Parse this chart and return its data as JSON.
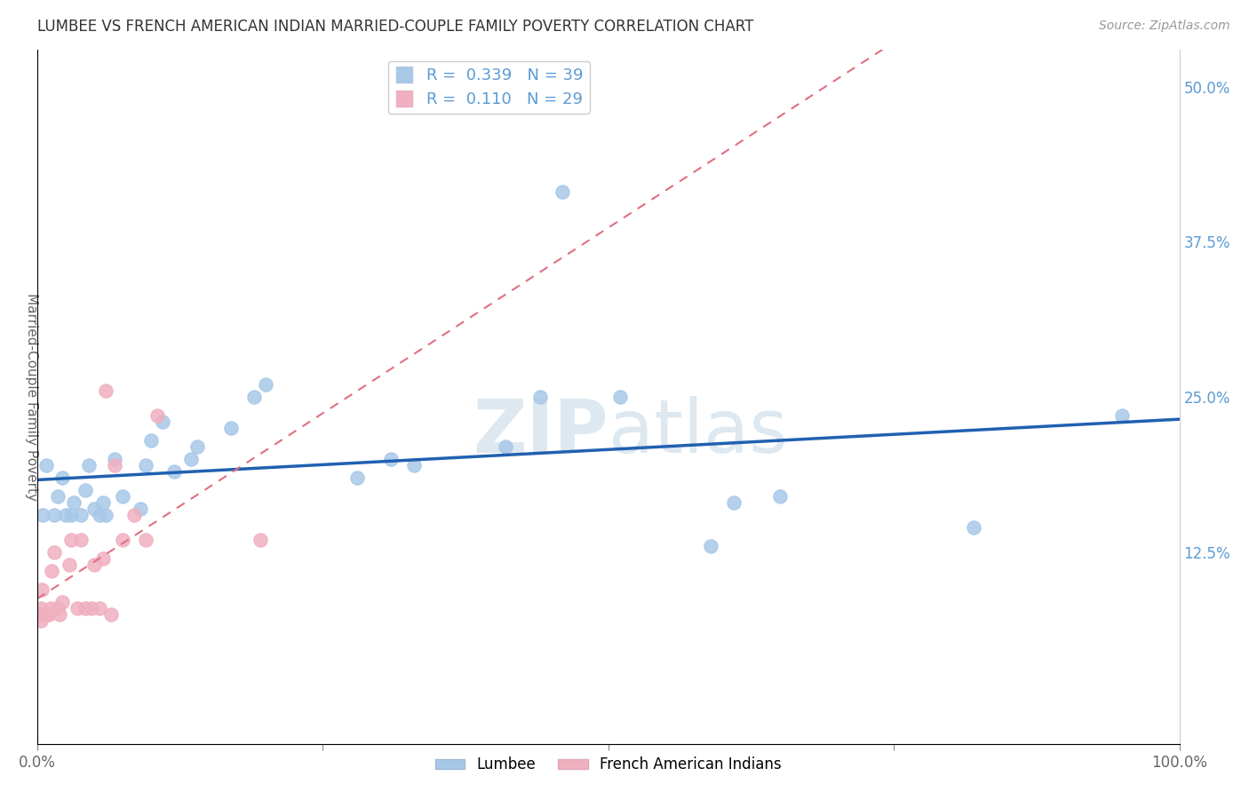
{
  "title": "LUMBEE VS FRENCH AMERICAN INDIAN MARRIED-COUPLE FAMILY POVERTY CORRELATION CHART",
  "source": "Source: ZipAtlas.com",
  "ylabel": "Married-Couple Family Poverty",
  "xlim": [
    0,
    1.0
  ],
  "ylim": [
    -0.03,
    0.53
  ],
  "xticks": [
    0.0,
    0.25,
    0.5,
    0.75,
    1.0
  ],
  "xtick_labels": [
    "0.0%",
    "",
    "",
    "",
    "100.0%"
  ],
  "yticks": [
    0.0,
    0.125,
    0.25,
    0.375,
    0.5
  ],
  "ytick_labels": [
    "",
    "12.5%",
    "25.0%",
    "37.5%",
    "50.0%"
  ],
  "watermark_zip": "ZIP",
  "watermark_atlas": "atlas",
  "legend_r1": "0.339",
  "legend_n1": "39",
  "legend_r2": "0.110",
  "legend_n2": "29",
  "lumbee_color": "#a8c8e8",
  "french_color": "#f0b0c0",
  "lumbee_line_color": "#2060b0",
  "french_line_color": "#e07080",
  "background_color": "#ffffff",
  "lumbee_x": [
    0.005,
    0.008,
    0.015,
    0.018,
    0.022,
    0.025,
    0.03,
    0.032,
    0.038,
    0.042,
    0.045,
    0.05,
    0.055,
    0.058,
    0.06,
    0.068,
    0.075,
    0.09,
    0.095,
    0.1,
    0.11,
    0.12,
    0.135,
    0.14,
    0.17,
    0.19,
    0.2,
    0.28,
    0.31,
    0.33,
    0.41,
    0.44,
    0.46,
    0.51,
    0.59,
    0.61,
    0.65,
    0.82,
    0.95
  ],
  "lumbee_y": [
    0.155,
    0.195,
    0.155,
    0.17,
    0.185,
    0.155,
    0.155,
    0.165,
    0.155,
    0.175,
    0.195,
    0.16,
    0.155,
    0.165,
    0.155,
    0.2,
    0.17,
    0.16,
    0.195,
    0.215,
    0.23,
    0.19,
    0.2,
    0.21,
    0.225,
    0.25,
    0.26,
    0.185,
    0.2,
    0.195,
    0.21,
    0.25,
    0.415,
    0.25,
    0.13,
    0.165,
    0.17,
    0.145,
    0.235
  ],
  "french_x": [
    0.003,
    0.003,
    0.004,
    0.004,
    0.008,
    0.01,
    0.012,
    0.013,
    0.015,
    0.018,
    0.02,
    0.022,
    0.028,
    0.03,
    0.035,
    0.038,
    0.042,
    0.048,
    0.05,
    0.055,
    0.058,
    0.06,
    0.065,
    0.068,
    0.075,
    0.085,
    0.095,
    0.105,
    0.195
  ],
  "french_y": [
    0.08,
    0.07,
    0.075,
    0.095,
    0.075,
    0.075,
    0.08,
    0.11,
    0.125,
    0.08,
    0.075,
    0.085,
    0.115,
    0.135,
    0.08,
    0.135,
    0.08,
    0.08,
    0.115,
    0.08,
    0.12,
    0.255,
    0.075,
    0.195,
    0.135,
    0.155,
    0.135,
    0.235,
    0.135
  ]
}
